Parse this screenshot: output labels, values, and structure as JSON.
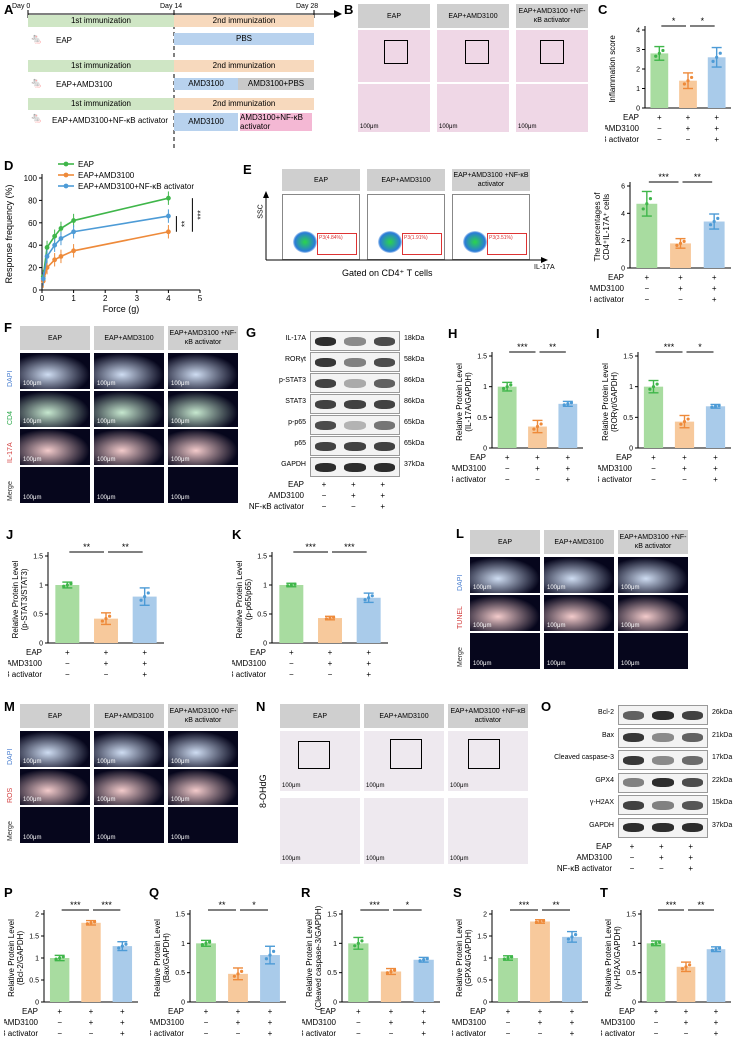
{
  "panels": {
    "A": "A",
    "B": "B",
    "C": "C",
    "D": "D",
    "E": "E",
    "F": "F",
    "G": "G",
    "H": "H",
    "I": "I",
    "J": "J",
    "K": "K",
    "L": "L",
    "M": "M",
    "N": "N",
    "O": "O",
    "P": "P",
    "Q": "Q",
    "R": "R",
    "S": "S",
    "T": "T"
  },
  "schema": {
    "days": [
      "Day 0",
      "Day 14",
      "Day 28"
    ],
    "first": "1st immunization",
    "second": "2nd immunization",
    "groups": [
      {
        "label": "EAP",
        "arms": [
          "PBS"
        ]
      },
      {
        "label": "EAP+AMD3100",
        "arms": [
          "AMD3100",
          "AMD3100+PBS"
        ]
      },
      {
        "label": "EAP+AMD3100+NF-κB activator",
        "arms": [
          "AMD3100",
          "AMD3100+NF-κB activator"
        ]
      }
    ]
  },
  "groups_hdr": [
    "EAP",
    "EAP+AMD3100",
    "EAP+AMD3100 +NF-κB activator"
  ],
  "scalebar": "100μm",
  "fluor_rows_F": [
    "DAPI",
    "CD4",
    "IL-17A",
    "Merge"
  ],
  "fluor_rows_L": [
    "DAPI",
    "TUNEL",
    "Merge"
  ],
  "fluor_rows_M": [
    "DAPI",
    "ROS",
    "Merge"
  ],
  "ihc_label": "8-OHdG",
  "flow": {
    "gated": "Gated on CD4⁺ T cells",
    "xlab": "IL-17A",
    "ylab": "SSC",
    "gates": [
      "P3(4.84%)",
      "P3(1.91%)",
      "P3(3.51%)"
    ]
  },
  "treat": {
    "rows": [
      "EAP",
      "AMD3100",
      "NF-κB activator"
    ],
    "signs": [
      [
        "+",
        "+",
        "+"
      ],
      [
        "−",
        "+",
        "+"
      ],
      [
        "−",
        "−",
        "+"
      ]
    ]
  },
  "blot_G": {
    "proteins": [
      "IL-17A",
      "RORγt",
      "p-STAT3",
      "STAT3",
      "p-p65",
      "p65",
      "GAPDH"
    ],
    "mw": [
      "18kDa",
      "58kDa",
      "86kDa",
      "86kDa",
      "65kDa",
      "65kDa",
      "37kDa"
    ]
  },
  "blot_O": {
    "proteins": [
      "Bcl-2",
      "Bax",
      "Cleaved caspase-3",
      "GPX4",
      "γ-H2AX",
      "GAPDH"
    ],
    "mw": [
      "26kDa",
      "21kDa",
      "17kDa",
      "22kDa",
      "15kDa",
      "37kDa"
    ]
  },
  "colors": {
    "g1": "#a8dca0",
    "g2": "#f7c99c",
    "g3": "#a9cbea",
    "line1": "#3fb64a",
    "line2": "#ee8a3a",
    "line3": "#4d9bd6"
  },
  "line_D": {
    "type": "line",
    "ylabel": "Response frequency (%)",
    "xlabel": "Force (g)",
    "ylim": [
      0,
      100
    ],
    "xlim": [
      0,
      5
    ],
    "series": [
      {
        "name": "EAP",
        "x": [
          0.04,
          0.16,
          0.4,
          0.6,
          1.0,
          4.0
        ],
        "y": [
          12,
          38,
          48,
          55,
          62,
          82
        ]
      },
      {
        "name": "EAP+AMD3100",
        "x": [
          0.04,
          0.16,
          0.4,
          0.6,
          1.0,
          4.0
        ],
        "y": [
          8,
          20,
          27,
          30,
          35,
          52
        ]
      },
      {
        "name": "EAP+AMD3100+NF-κB activator",
        "x": [
          0.04,
          0.16,
          0.4,
          0.6,
          1.0,
          4.0
        ],
        "y": [
          10,
          30,
          40,
          46,
          52,
          66
        ]
      }
    ],
    "sig": [
      "**",
      "***"
    ]
  },
  "chart_data": [
    {
      "id": "C1",
      "type": "bar",
      "ylabel": "Inflammation score",
      "ylim": [
        0,
        4
      ],
      "ticks": [
        0,
        1,
        2,
        3,
        4
      ],
      "values": [
        2.8,
        1.4,
        2.6
      ],
      "err": [
        0.35,
        0.4,
        0.5
      ],
      "sig": [
        "*",
        "*"
      ]
    },
    {
      "id": "C2",
      "type": "bar",
      "ylabel": "The percentages of CD4⁺IL-17A⁺ cells",
      "ylim": [
        0,
        6
      ],
      "ticks": [
        0,
        2,
        4,
        6
      ],
      "values": [
        4.7,
        1.8,
        3.4
      ],
      "err": [
        0.9,
        0.35,
        0.55
      ],
      "sig": [
        "***",
        "**"
      ]
    },
    {
      "id": "H",
      "type": "bar",
      "ylabel": "Relative Protein Level (IL-17A/GAPDH)",
      "ylim": [
        0,
        1.5
      ],
      "ticks": [
        0,
        0.5,
        1.0,
        1.5
      ],
      "values": [
        1.0,
        0.35,
        0.72
      ],
      "err": [
        0.07,
        0.1,
        0.04
      ],
      "sig": [
        "***",
        "**"
      ]
    },
    {
      "id": "I",
      "type": "bar",
      "ylabel": "Relative Protein Level (RORγt/GAPDH)",
      "ylim": [
        0,
        1.5
      ],
      "ticks": [
        0,
        0.5,
        1.0,
        1.5
      ],
      "values": [
        1.0,
        0.43,
        0.68
      ],
      "err": [
        0.1,
        0.1,
        0.03
      ],
      "sig": [
        "***",
        "*"
      ]
    },
    {
      "id": "J",
      "type": "bar",
      "ylabel": "Relative Protein Level (p-STAT3/STAT3)",
      "ylim": [
        0,
        1.5
      ],
      "ticks": [
        0,
        0.5,
        1.0,
        1.5
      ],
      "values": [
        1.0,
        0.42,
        0.8
      ],
      "err": [
        0.05,
        0.1,
        0.15
      ],
      "sig": [
        "**",
        "**"
      ]
    },
    {
      "id": "K",
      "type": "bar",
      "ylabel": "Relative Protein Level (p-p65/p65)",
      "ylim": [
        0,
        1.5
      ],
      "ticks": [
        0,
        0.5,
        1.0,
        1.5
      ],
      "values": [
        1.0,
        0.43,
        0.78
      ],
      "err": [
        0.03,
        0.03,
        0.08
      ],
      "sig": [
        "***",
        "***"
      ]
    },
    {
      "id": "P",
      "type": "bar",
      "ylabel": "Relative Protein Level (Bcl-2/GAPDH)",
      "ylim": [
        0,
        2.0
      ],
      "ticks": [
        0,
        0.5,
        1.0,
        1.5,
        2.0
      ],
      "values": [
        1.0,
        1.8,
        1.27
      ],
      "err": [
        0.06,
        0.05,
        0.1
      ],
      "sig": [
        "***",
        "***"
      ]
    },
    {
      "id": "Q",
      "type": "bar",
      "ylabel": "Relative Protein Level (Bax/GAPDH)",
      "ylim": [
        0,
        1.5
      ],
      "ticks": [
        0,
        0.5,
        1.0,
        1.5
      ],
      "values": [
        1.0,
        0.48,
        0.8
      ],
      "err": [
        0.05,
        0.1,
        0.15
      ],
      "sig": [
        "**",
        "*"
      ]
    },
    {
      "id": "R",
      "type": "bar",
      "ylabel": "Relative Protein Level (Cleaved caspase-3/GAPDH)",
      "ylim": [
        0,
        1.5
      ],
      "ticks": [
        0,
        0.5,
        1.0,
        1.5
      ],
      "values": [
        1.0,
        0.52,
        0.72
      ],
      "err": [
        0.1,
        0.05,
        0.04
      ],
      "sig": [
        "***",
        "*"
      ]
    },
    {
      "id": "S",
      "type": "bar",
      "ylabel": "Relative Protein Level (GPX4/GAPDH)",
      "ylim": [
        0,
        2.0
      ],
      "ticks": [
        0,
        0.5,
        1.0,
        1.5,
        2.0
      ],
      "values": [
        1.0,
        1.83,
        1.48
      ],
      "err": [
        0.05,
        0.04,
        0.12
      ],
      "sig": [
        "***",
        "**"
      ]
    },
    {
      "id": "T",
      "type": "bar",
      "ylabel": "Relative Protein Level (γ-H2AX/GAPDH)",
      "ylim": [
        0,
        1.5
      ],
      "ticks": [
        0,
        0.5,
        1.0,
        1.5
      ],
      "values": [
        1.0,
        0.6,
        0.9
      ],
      "err": [
        0.04,
        0.08,
        0.04
      ],
      "sig": [
        "***",
        "**"
      ]
    }
  ]
}
